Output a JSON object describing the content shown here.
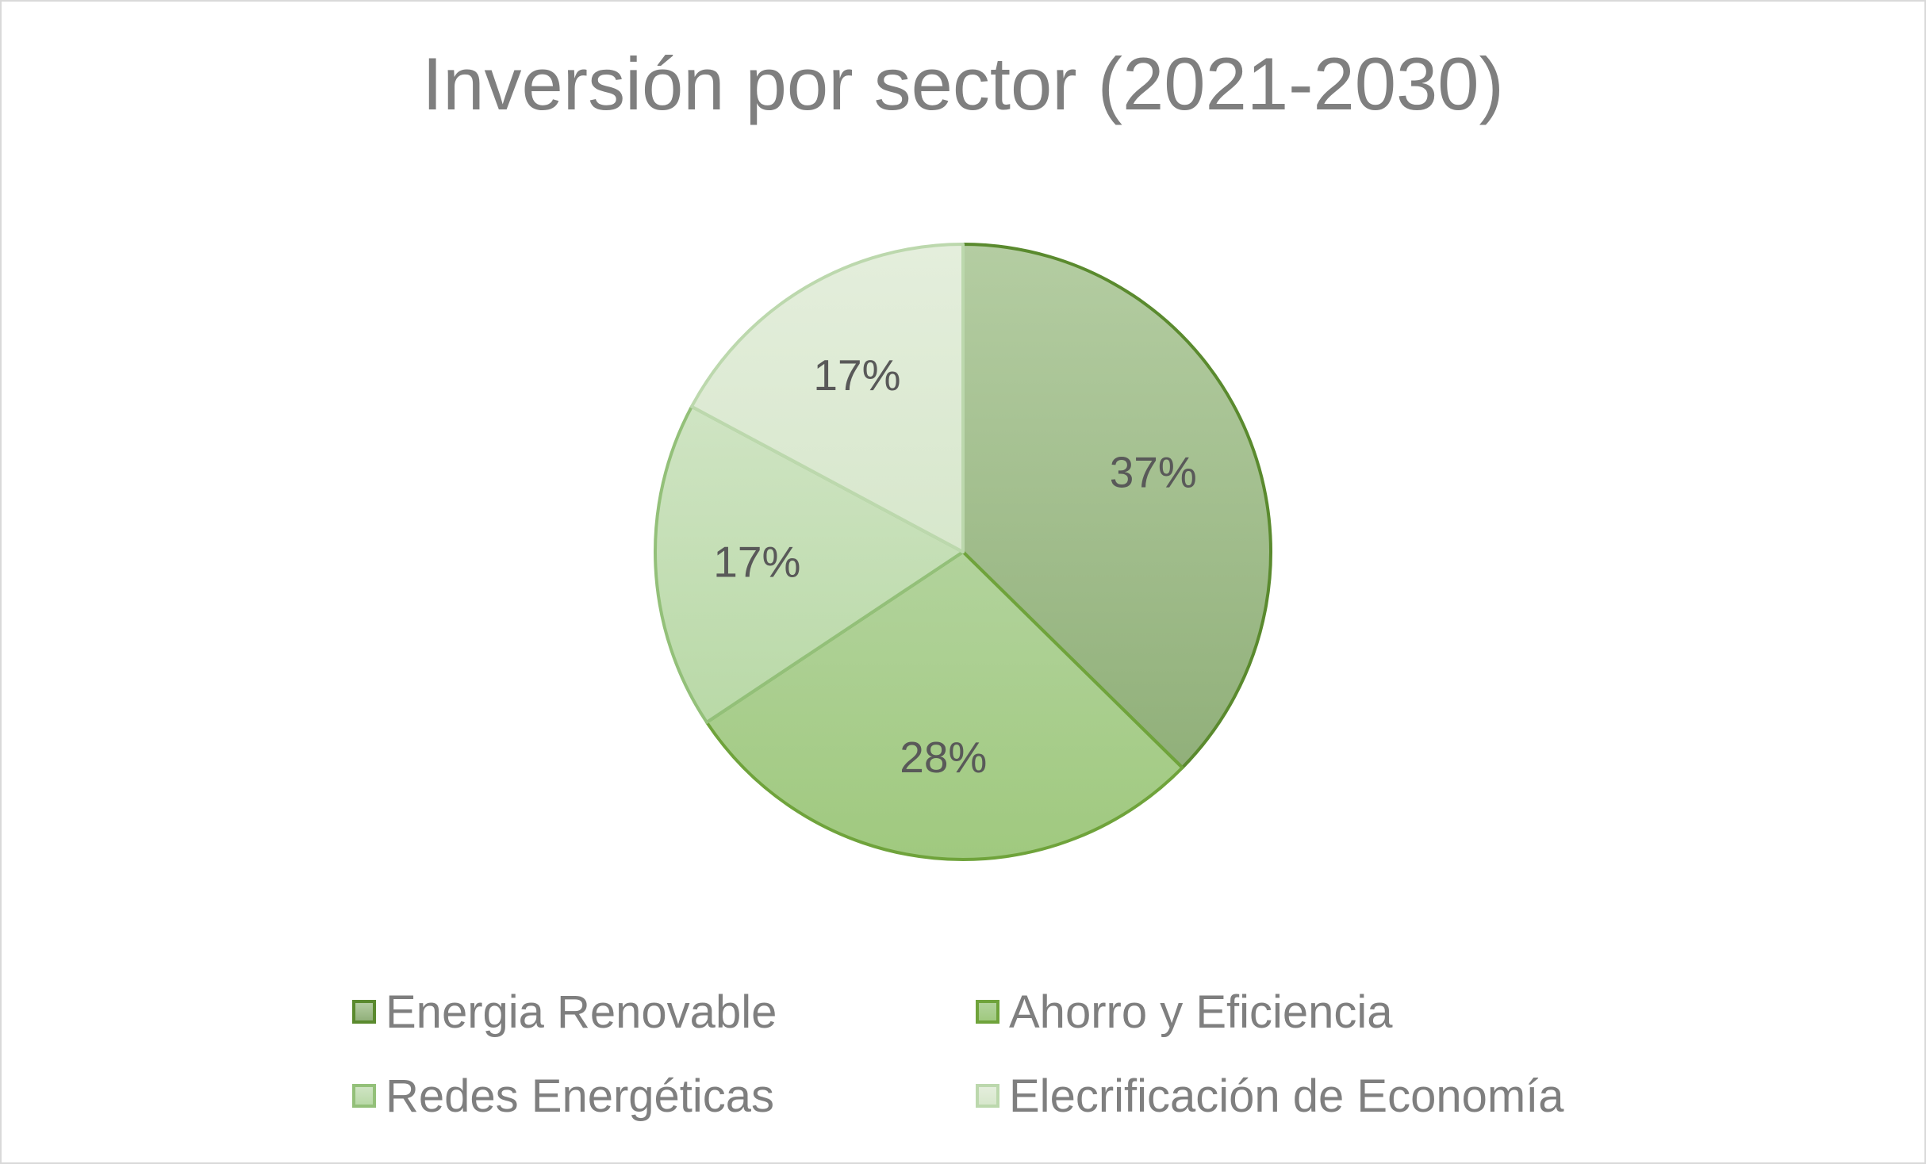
{
  "chart_data": {
    "type": "pie",
    "title": "Inversión por sector (2021-2030)",
    "categories": [
      "Energia Renovable",
      "Ahorro y Eficiencia",
      "Redes Energéticas",
      "Elecrificación de Economía"
    ],
    "values": [
      37,
      28,
      17,
      17
    ],
    "data_labels": [
      "37%",
      "28%",
      "17%",
      "17%"
    ],
    "colors": {
      "fill_top": [
        "#b4cda2",
        "#b2d39c",
        "#cfe4c3",
        "#e4eedc"
      ],
      "fill_bottom": [
        "#91b07a",
        "#a0c97f",
        "#b9d9a7",
        "#d7e7cc"
      ],
      "border": [
        "#5a8a2e",
        "#6fa33b",
        "#93c079",
        "#bcd8ad"
      ]
    },
    "legend_position": "bottom",
    "grid": false
  }
}
